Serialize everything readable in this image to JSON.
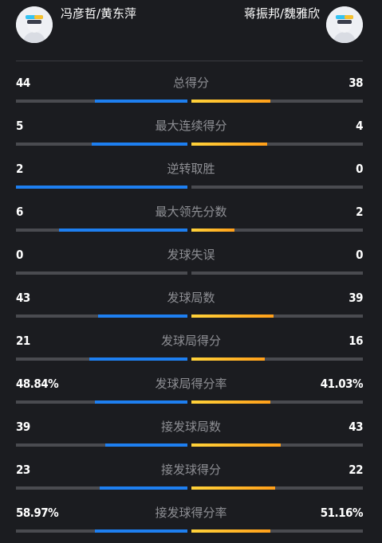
{
  "header": {
    "left_team": "冯彦哲/黄东萍",
    "right_team": "蒋振邦/魏雅欣"
  },
  "stats": [
    {
      "label": "总得分",
      "left": "44",
      "right": "38",
      "left_fraction": 0.54,
      "right_fraction": 0.46
    },
    {
      "label": "最大连续得分",
      "left": "5",
      "right": "4",
      "left_fraction": 0.56,
      "right_fraction": 0.44
    },
    {
      "label": "逆转取胜",
      "left": "2",
      "right": "0",
      "left_fraction": 1.0,
      "right_fraction": 0.0
    },
    {
      "label": "最大领先分数",
      "left": "6",
      "right": "2",
      "left_fraction": 0.75,
      "right_fraction": 0.25
    },
    {
      "label": "发球失误",
      "left": "0",
      "right": "0",
      "left_fraction": 0.0,
      "right_fraction": 0.0
    },
    {
      "label": "发球局数",
      "left": "43",
      "right": "39",
      "left_fraction": 0.52,
      "right_fraction": 0.48
    },
    {
      "label": "发球局得分",
      "left": "21",
      "right": "16",
      "left_fraction": 0.57,
      "right_fraction": 0.43
    },
    {
      "label": "发球局得分率",
      "left": "48.84%",
      "right": "41.03%",
      "left_fraction": 0.54,
      "right_fraction": 0.46
    },
    {
      "label": "接发球局数",
      "left": "39",
      "right": "43",
      "left_fraction": 0.48,
      "right_fraction": 0.52
    },
    {
      "label": "接发球得分",
      "left": "23",
      "right": "22",
      "left_fraction": 0.51,
      "right_fraction": 0.49
    },
    {
      "label": "接发球得分率",
      "left": "58.97%",
      "right": "51.16%",
      "left_fraction": 0.54,
      "right_fraction": 0.46
    }
  ],
  "colors": {
    "left_bar": "#1e7ff0",
    "right_bar_start": "#ffd23a",
    "right_bar_end": "#ff9f1a",
    "track": "#4a4b50",
    "background": "#1b1c20"
  },
  "icons": {
    "left_avatar": "player-avatar-icon",
    "right_avatar": "player-avatar-icon"
  }
}
